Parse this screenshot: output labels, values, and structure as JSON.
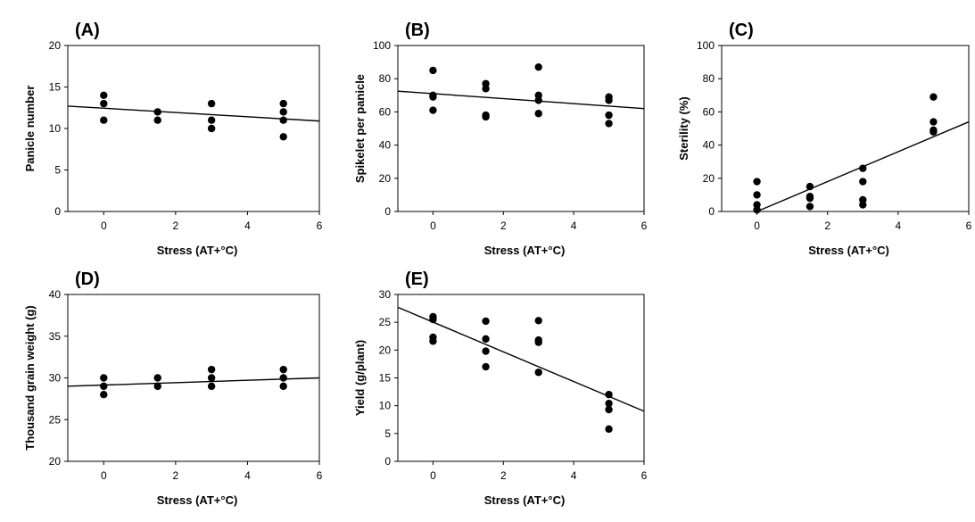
{
  "chart_data": [
    {
      "type": "scatter",
      "title": "(A)",
      "xlabel": "Stress (AT+°C)",
      "ylabel": "Panicle number",
      "color": "#000000",
      "xlim": [
        -1,
        6
      ],
      "xticks": [
        0,
        2,
        4,
        6
      ],
      "ylim": [
        0,
        20
      ],
      "yticks": [
        0,
        5,
        10,
        15,
        20
      ],
      "x": [
        0,
        0,
        0,
        1.5,
        1.5,
        3,
        3,
        3,
        5,
        5,
        5,
        5
      ],
      "y": [
        14,
        13,
        11,
        12,
        11,
        13,
        11,
        10,
        13,
        12,
        11,
        9
      ],
      "fit": {
        "x": [
          -1,
          6
        ],
        "y": [
          12.7,
          10.9
        ]
      }
    },
    {
      "type": "scatter",
      "title": "(B)",
      "xlabel": "Stress (AT+°C)",
      "ylabel": "Spikelet per panicle",
      "color": "#000000",
      "xlim": [
        -1,
        6
      ],
      "xticks": [
        0,
        2,
        4,
        6
      ],
      "ylim": [
        0,
        100
      ],
      "yticks": [
        0,
        20,
        40,
        60,
        80,
        100
      ],
      "x": [
        0,
        0,
        0,
        0,
        1.5,
        1.5,
        1.5,
        1.5,
        3,
        3,
        3,
        3,
        5,
        5,
        5,
        5
      ],
      "y": [
        85,
        70,
        69,
        61,
        77,
        74,
        58,
        57,
        87,
        70,
        67,
        59,
        69,
        67,
        58,
        53
      ],
      "fit": {
        "x": [
          -1,
          6
        ],
        "y": [
          72.5,
          62
        ]
      }
    },
    {
      "type": "scatter",
      "title": "(C)",
      "xlabel": "Stress (AT+°C)",
      "ylabel": "Sterility (%)",
      "color": "#000000",
      "xlim": [
        -1,
        6
      ],
      "xticks": [
        0,
        2,
        4,
        6
      ],
      "ylim": [
        0,
        100
      ],
      "yticks": [
        0,
        20,
        40,
        60,
        80,
        100
      ],
      "x": [
        0,
        0,
        0,
        0,
        1.5,
        1.5,
        1.5,
        1.5,
        3,
        3,
        3,
        3,
        5,
        5,
        5,
        5
      ],
      "y": [
        18,
        10,
        4,
        1,
        15,
        9,
        8,
        3,
        26,
        18,
        7,
        4,
        69,
        54,
        49,
        48
      ],
      "fit": {
        "x": [
          0,
          6
        ],
        "y": [
          0,
          54
        ]
      }
    },
    {
      "type": "scatter",
      "title": "(D)",
      "xlabel": "Stress (AT+°C)",
      "ylabel": "Thousand grain weight (g)",
      "color": "#000000",
      "xlim": [
        -1,
        6
      ],
      "xticks": [
        0,
        2,
        4,
        6
      ],
      "ylim": [
        20,
        40
      ],
      "yticks": [
        20,
        25,
        30,
        35,
        40
      ],
      "x": [
        0,
        0,
        0,
        1.5,
        1.5,
        3,
        3,
        3,
        5,
        5,
        5
      ],
      "y": [
        30,
        29,
        28,
        30,
        29,
        31,
        30,
        29,
        31,
        30,
        29
      ],
      "fit": {
        "x": [
          -1,
          6
        ],
        "y": [
          29,
          30
        ]
      }
    },
    {
      "type": "scatter",
      "title": "(E)",
      "xlabel": "Stress (AT+°C)",
      "ylabel": "Yield (g/plant)",
      "color": "#000000",
      "xlim": [
        -1,
        6
      ],
      "xticks": [
        0,
        2,
        4,
        6
      ],
      "ylim": [
        0,
        30
      ],
      "yticks": [
        0,
        5,
        10,
        15,
        20,
        25,
        30
      ],
      "x": [
        0,
        0,
        0,
        0,
        1.5,
        1.5,
        1.5,
        1.5,
        3,
        3,
        3,
        3,
        5,
        5,
        5,
        5
      ],
      "y": [
        26,
        25.5,
        22.3,
        21.6,
        25.2,
        22,
        19.8,
        17,
        25.3,
        21.8,
        21.4,
        16,
        12,
        10.4,
        9.3,
        5.8
      ],
      "fit": {
        "x": [
          -1,
          6
        ],
        "y": [
          27.7,
          9
        ]
      }
    }
  ]
}
